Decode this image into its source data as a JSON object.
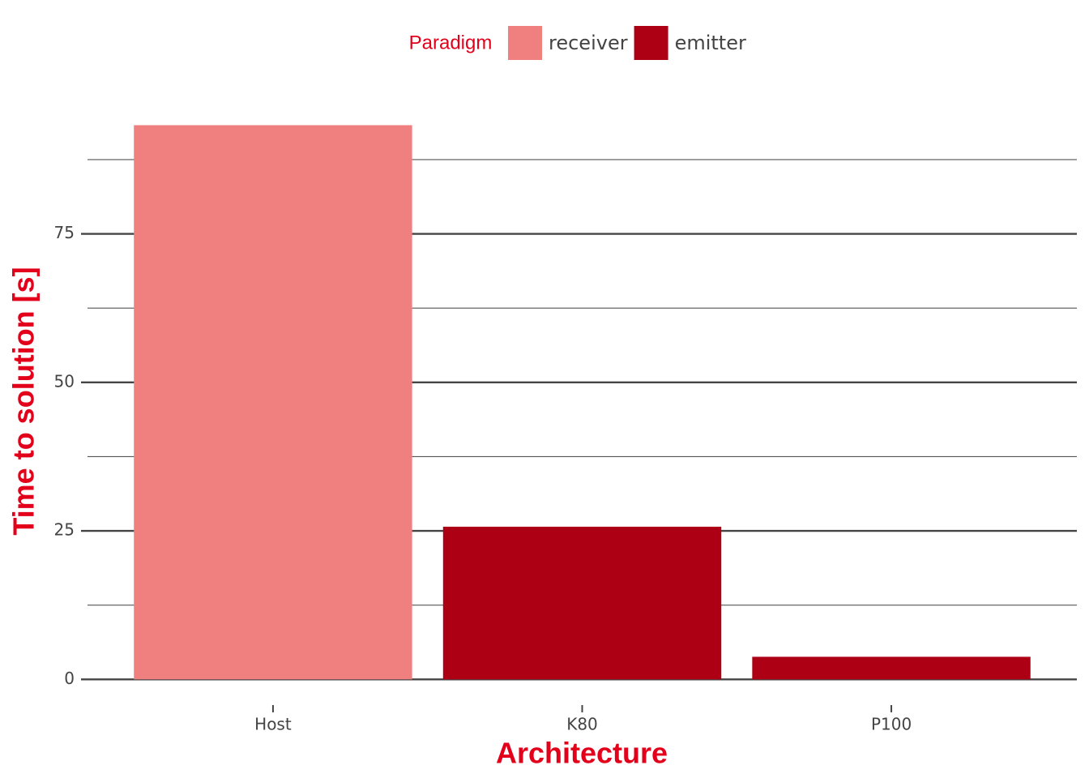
{
  "chart_data": {
    "type": "bar",
    "x_label": "Architecture",
    "y_label": "Time to solution [s]",
    "legend_title": "Paradigm",
    "legend_position": "top",
    "categories": [
      "Host",
      "K80",
      "P100"
    ],
    "series": [
      {
        "name": "receiver",
        "color": "#f08080",
        "values": [
          93.3,
          null,
          null
        ]
      },
      {
        "name": "emitter",
        "color": "#ad0014",
        "values": [
          null,
          25.7,
          3.8
        ]
      }
    ],
    "ylim": [
      -4.6,
      98
    ],
    "yticks": [
      0,
      25,
      50,
      75
    ],
    "minor_yticks": [
      12.5,
      37.5,
      62.5,
      87.5
    ],
    "grid": true
  }
}
